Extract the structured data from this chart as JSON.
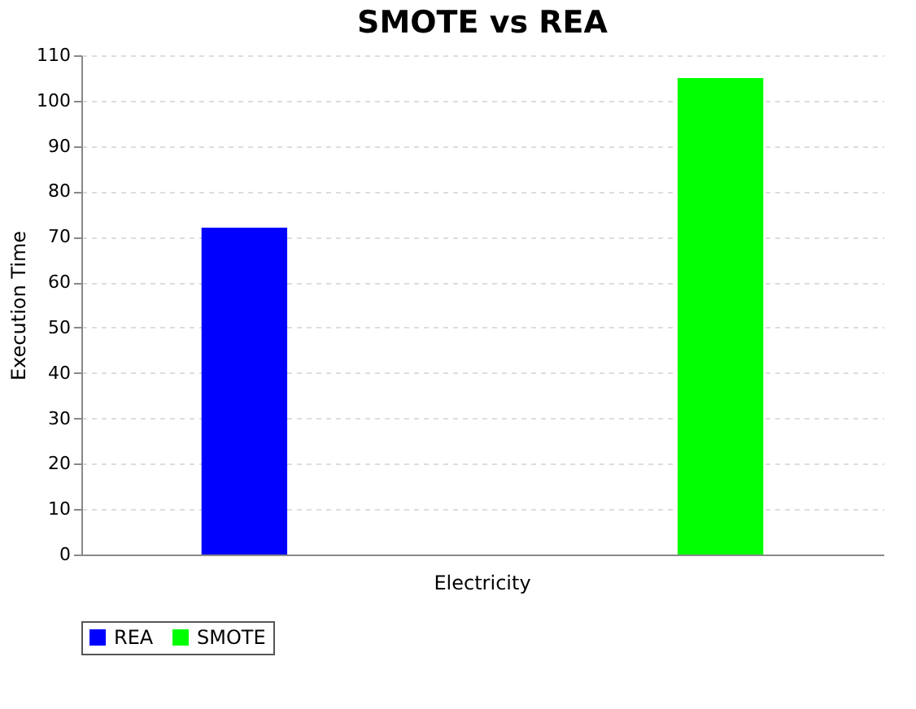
{
  "chart_data": {
    "type": "bar",
    "title": "SMOTE vs REA",
    "ylabel": "Execution Time",
    "categories": [
      "Electricity"
    ],
    "series": [
      {
        "name": "REA",
        "color": "#0000ff",
        "values": [
          72
        ]
      },
      {
        "name": "SMOTE",
        "color": "#00ff00",
        "values": [
          105
        ]
      }
    ],
    "ylim": [
      0,
      110
    ],
    "yticks": [
      0,
      10,
      20,
      30,
      40,
      50,
      60,
      70,
      80,
      90,
      100,
      110
    ],
    "grid": "y",
    "legend": "bottom"
  }
}
